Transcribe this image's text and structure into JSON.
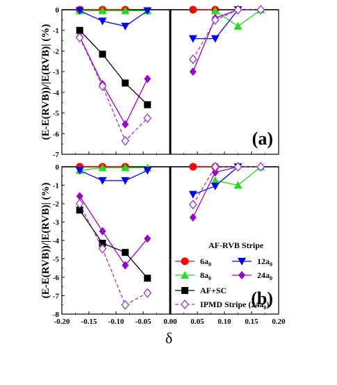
{
  "figure": {
    "xlabel": "δ",
    "xticks": [
      "-0.20",
      "-0.15",
      "-0.10",
      "-0.05",
      "0.00",
      "0.05",
      "0.10",
      "0.15",
      "0.20"
    ]
  },
  "legend": {
    "title": "AF-RVB Stripe",
    "entries": [
      {
        "key": "6a",
        "text": "6a",
        "sub": "0"
      },
      {
        "key": "12a",
        "text": "12a",
        "sub": "0"
      },
      {
        "key": "8a",
        "text": "8a",
        "sub": "0"
      },
      {
        "key": "24a",
        "text": "24a",
        "sub": "0"
      },
      {
        "key": "afsc",
        "text": "AF+SC",
        "sub": ""
      },
      {
        "key": "ipmd",
        "text": "IPMD Stripe (24a",
        "sub": "0",
        "suffix": ")"
      }
    ]
  },
  "colors": {
    "6a": "#ff0000",
    "8a": "#22dd22",
    "12a": "#0000ff",
    "24a": "#9900cc",
    "afsc": "#000000",
    "ipmd": "#9933cc"
  },
  "chart_data": [
    {
      "type": "line",
      "panel_label": "(a)",
      "ylabel": "(E-E(RVB))/|E(RVB)| (%)",
      "xlim": [
        -0.2,
        0.2
      ],
      "ylim": [
        -7,
        0
      ],
      "yticks": [
        "-7",
        "-6",
        "-5",
        "-4",
        "-3",
        "-2",
        "-1",
        "0"
      ],
      "series": [
        {
          "key": "6a",
          "marker": "circle",
          "dashed": false,
          "left": [
            [
              -0.167,
              0
            ],
            [
              -0.125,
              0
            ],
            [
              -0.083,
              0
            ]
          ],
          "right": [
            [
              0.042,
              0
            ],
            [
              0.083,
              0
            ]
          ]
        },
        {
          "key": "8a",
          "marker": "triangle-up",
          "dashed": false,
          "left": [
            [
              -0.167,
              -0.05
            ],
            [
              -0.125,
              -0.05
            ],
            [
              -0.083,
              -0.05
            ],
            [
              -0.042,
              -0.05
            ]
          ],
          "right": [
            [
              0.083,
              -0.05
            ],
            [
              0.125,
              -0.8
            ],
            [
              0.167,
              0
            ]
          ]
        },
        {
          "key": "12a",
          "marker": "triangle-down",
          "dashed": false,
          "left": [
            [
              -0.167,
              -0.05
            ],
            [
              -0.125,
              -0.55
            ],
            [
              -0.083,
              -0.8
            ],
            [
              -0.042,
              -0.05
            ]
          ],
          "right": [
            [
              0.042,
              -1.4
            ],
            [
              0.083,
              -1.4
            ],
            [
              0.125,
              0
            ]
          ]
        },
        {
          "key": "24a",
          "marker": "diamond",
          "dashed": false,
          "left": [
            [
              -0.167,
              -1.3
            ],
            [
              -0.125,
              -3.6
            ],
            [
              -0.083,
              -5.55
            ],
            [
              -0.042,
              -3.35
            ]
          ],
          "right": [
            [
              0.042,
              -3.0
            ],
            [
              0.083,
              -0.4
            ],
            [
              0.125,
              0
            ]
          ]
        },
        {
          "key": "afsc",
          "marker": "square",
          "dashed": false,
          "left": [
            [
              -0.167,
              -1.0
            ],
            [
              -0.125,
              -2.15
            ],
            [
              -0.083,
              -3.55
            ],
            [
              -0.042,
              -4.6
            ]
          ],
          "right": []
        },
        {
          "key": "ipmd",
          "marker": "diamond-open",
          "dashed": true,
          "left": [
            [
              -0.167,
              -1.35
            ],
            [
              -0.125,
              -3.7
            ],
            [
              -0.083,
              -6.35
            ],
            [
              -0.042,
              -5.25
            ]
          ],
          "right": [
            [
              0.042,
              -2.4
            ],
            [
              0.083,
              -0.5
            ],
            [
              0.125,
              0
            ],
            [
              0.167,
              0
            ]
          ]
        }
      ]
    },
    {
      "type": "line",
      "panel_label": "(b)",
      "ylabel": "(E-E(RVB))/|E(RVB)| (%)",
      "xlim": [
        -0.2,
        0.2
      ],
      "ylim": [
        -8,
        0
      ],
      "yticks": [
        "-8",
        "-7",
        "-6",
        "-5",
        "-4",
        "-3",
        "-2",
        "-1",
        "0"
      ],
      "series": [
        {
          "key": "6a",
          "marker": "circle",
          "dashed": false,
          "left": [
            [
              -0.167,
              0
            ],
            [
              -0.125,
              0
            ],
            [
              -0.083,
              0
            ]
          ],
          "right": [
            [
              0.042,
              0
            ],
            [
              0.083,
              0
            ]
          ]
        },
        {
          "key": "8a",
          "marker": "triangle-up",
          "dashed": false,
          "left": [
            [
              -0.167,
              -0.2
            ],
            [
              -0.125,
              -0.05
            ],
            [
              -0.083,
              -0.05
            ],
            [
              -0.042,
              -0.05
            ]
          ],
          "right": [
            [
              0.083,
              -0.75
            ],
            [
              0.125,
              -1.0
            ],
            [
              0.167,
              0
            ]
          ]
        },
        {
          "key": "12a",
          "marker": "triangle-down",
          "dashed": false,
          "left": [
            [
              -0.167,
              -0.2
            ],
            [
              -0.125,
              -0.75
            ],
            [
              -0.083,
              -0.75
            ],
            [
              -0.042,
              -0.2
            ]
          ],
          "right": [
            [
              0.042,
              -1.5
            ],
            [
              0.083,
              -1.05
            ],
            [
              0.125,
              0
            ]
          ]
        },
        {
          "key": "24a",
          "marker": "diamond",
          "dashed": false,
          "left": [
            [
              -0.167,
              -1.6
            ],
            [
              -0.125,
              -3.5
            ],
            [
              -0.083,
              -5.35
            ],
            [
              -0.042,
              -3.9
            ]
          ],
          "right": [
            [
              0.042,
              -2.75
            ],
            [
              0.083,
              -0.3
            ],
            [
              0.125,
              0
            ]
          ]
        },
        {
          "key": "afsc",
          "marker": "square",
          "dashed": false,
          "left": [
            [
              -0.167,
              -2.35
            ],
            [
              -0.125,
              -4.15
            ],
            [
              -0.083,
              -4.65
            ],
            [
              -0.042,
              -6.05
            ]
          ],
          "right": []
        },
        {
          "key": "ipmd",
          "marker": "diamond-open",
          "dashed": true,
          "left": [
            [
              -0.167,
              -2.0
            ],
            [
              -0.125,
              -4.45
            ],
            [
              -0.083,
              -7.5
            ],
            [
              -0.042,
              -6.85
            ]
          ],
          "right": [
            [
              0.042,
              -2.05
            ],
            [
              0.083,
              0
            ],
            [
              0.125,
              0
            ],
            [
              0.167,
              0
            ]
          ]
        }
      ]
    }
  ]
}
